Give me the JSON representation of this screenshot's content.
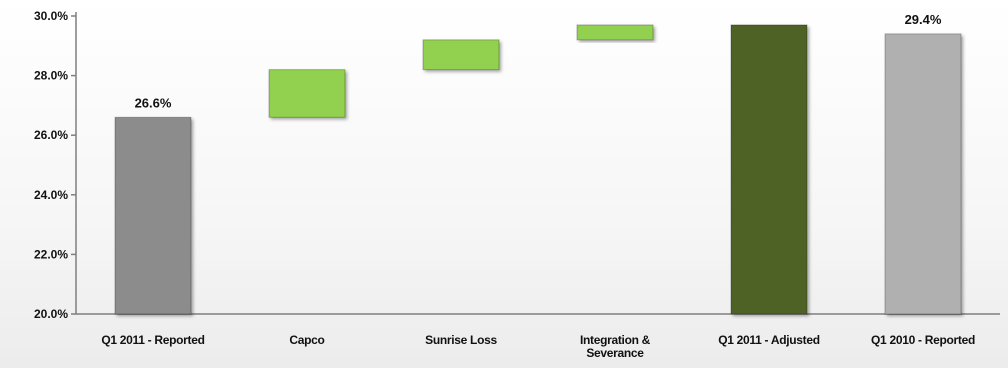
{
  "chart_data": {
    "type": "bar",
    "subtype": "waterfall",
    "title": "",
    "xlabel": "",
    "ylabel": "",
    "ylim": [
      20,
      30
    ],
    "yticks": [
      "20.0%",
      "22.0%",
      "24.0%",
      "26.0%",
      "28.0%",
      "30.0%"
    ],
    "grid": false,
    "legend": "none",
    "categories": [
      "Q1 2011 - Reported",
      "Capco",
      "Sunrise Loss",
      "Integration & Severance",
      "Q1 2011 - Adjusted",
      "Q1 2010 - Reported"
    ],
    "bars": [
      {
        "category": "Q1 2011 - Reported",
        "kind": "total",
        "base": 20.0,
        "top": 26.6,
        "label": "26.6%",
        "color": "#8c8c8c"
      },
      {
        "category": "Capco",
        "kind": "increment",
        "base": 26.6,
        "top": 28.2,
        "label": "",
        "color": "#92d050"
      },
      {
        "category": "Sunrise Loss",
        "kind": "increment",
        "base": 28.2,
        "top": 29.2,
        "label": "",
        "color": "#92d050"
      },
      {
        "category": "Integration & Severance",
        "kind": "increment",
        "base": 29.2,
        "top": 29.7,
        "label": "",
        "color": "#92d050"
      },
      {
        "category": "Q1 2011 - Adjusted",
        "kind": "total",
        "base": 20.0,
        "top": 29.7,
        "label": "",
        "color": "#4f6228"
      },
      {
        "category": "Q1 2010 - Reported",
        "kind": "total",
        "base": 20.0,
        "top": 29.4,
        "label": "29.4%",
        "color": "#b0b0b0"
      }
    ],
    "category_label_lines": [
      [
        "Q1 2011 - Reported"
      ],
      [
        "Capco"
      ],
      [
        "Sunrise Loss"
      ],
      [
        "Integration &",
        "Severance"
      ],
      [
        "Q1 2011 - Adjusted"
      ],
      [
        "Q1 2010 - Reported"
      ]
    ]
  }
}
